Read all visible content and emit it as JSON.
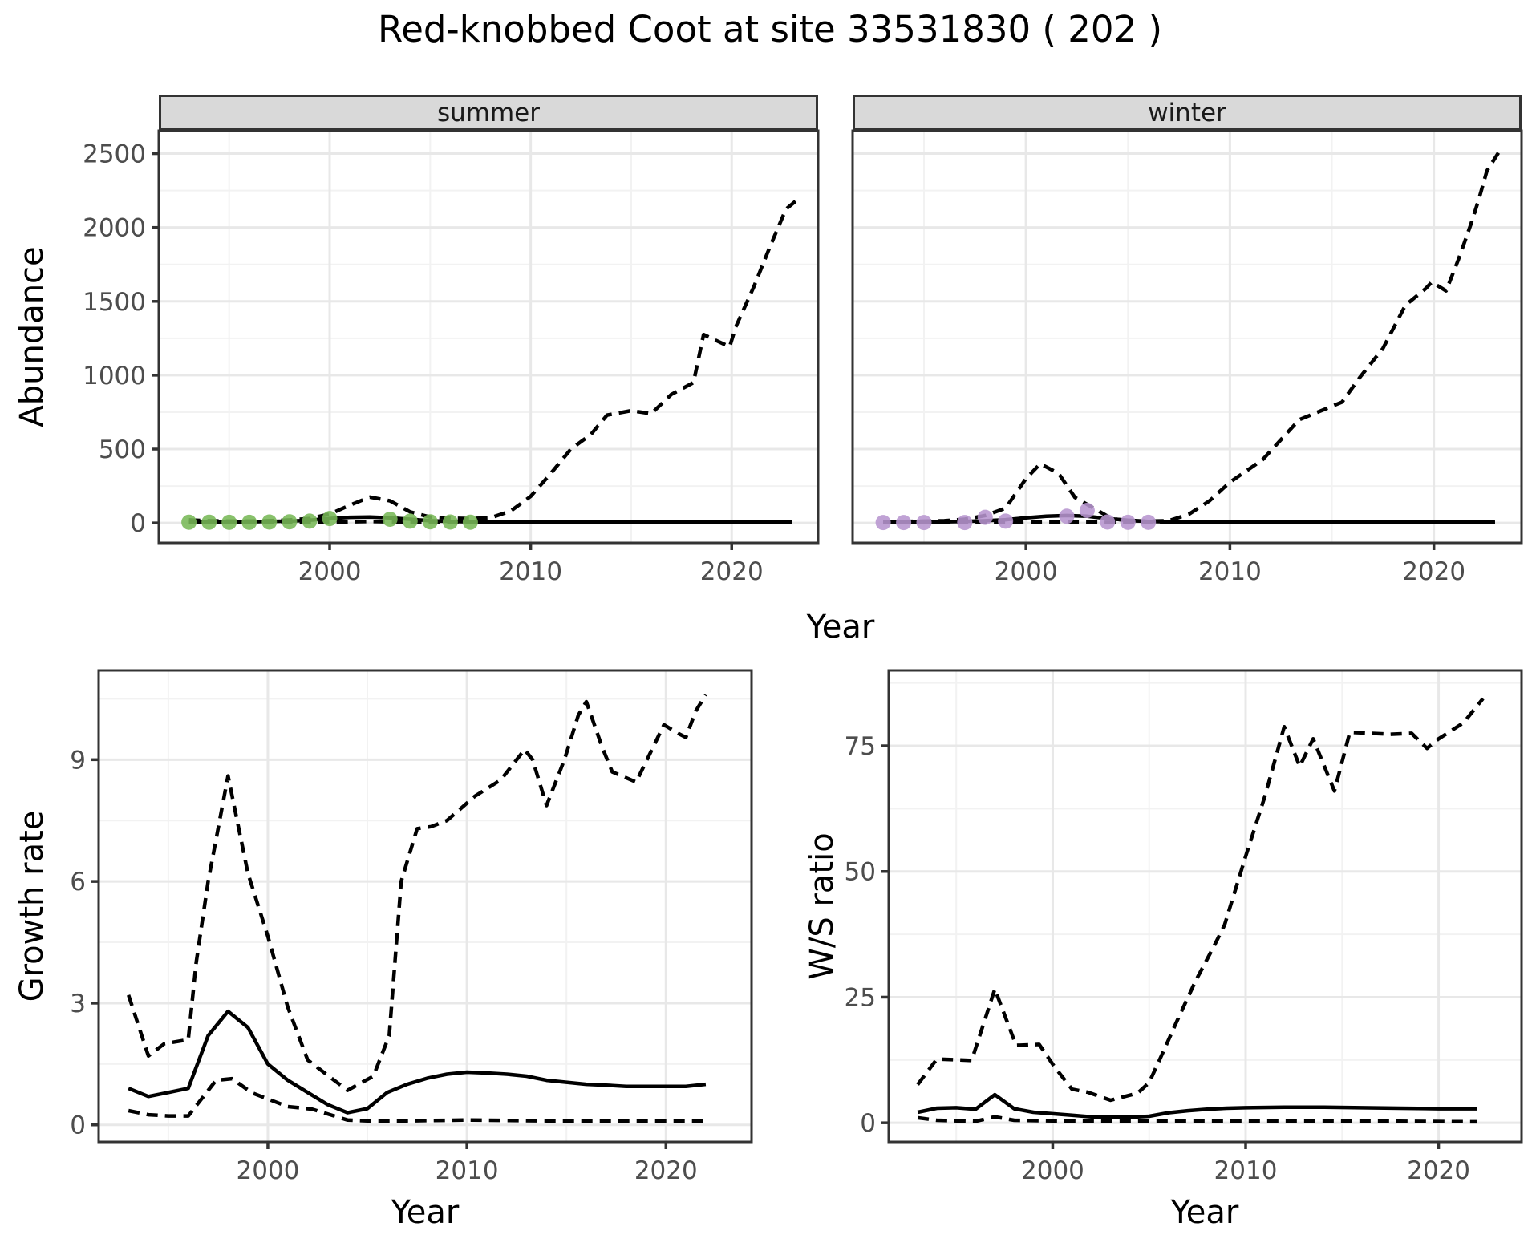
{
  "title": "Red-knobbed Coot at site 33531830 ( 202 )",
  "axis_titles": {
    "abundance_y": "Abundance",
    "top_x": "Year",
    "growth_y": "Growth rate",
    "growth_x": "Year",
    "ws_y": "W/S ratio",
    "ws_x": "Year"
  },
  "colors": {
    "summer_points": "#77B857",
    "winter_points": "#B795CF",
    "line": "#000000",
    "grid_major": "#E8E8E8",
    "grid_minor": "#F2F2F2",
    "panel_border": "#333333",
    "strip_bg": "#D9D9D9",
    "tick_label": "#4D4D4D"
  },
  "chart_data": [
    {
      "id": "abundance-summer",
      "type": "line",
      "facet_label": "summer",
      "xlabel": "Year",
      "ylabel": "Abundance",
      "xlim": [
        1991.5,
        2024.3
      ],
      "ylim": [
        -135,
        2655
      ],
      "x_ticks": [
        2000,
        2010,
        2020
      ],
      "x_minor": [
        1995,
        2005,
        2015
      ],
      "y_ticks": [
        0,
        500,
        1000,
        1500,
        2000,
        2500
      ],
      "y_minor": [
        250,
        750,
        1250,
        1750,
        2250
      ],
      "show_y_labels": true,
      "series": [
        {
          "name": "lower-ci",
          "style": "dashed",
          "x": [
            1993,
            1994,
            1995,
            1996,
            1997,
            1998,
            1999,
            2000,
            2001,
            2002,
            2003,
            2004,
            2005,
            2006,
            2007,
            2008,
            2009,
            2010,
            2011,
            2012,
            2013,
            2014,
            2015,
            2016,
            2017,
            2018,
            2019,
            2020,
            2021,
            2022,
            2023
          ],
          "y": [
            2,
            2,
            2,
            2,
            2,
            2,
            3,
            5,
            8,
            10,
            8,
            5,
            3,
            2,
            2,
            2,
            2,
            2,
            2,
            2,
            2,
            2,
            2,
            2,
            2,
            2,
            2,
            2,
            2,
            2,
            2
          ]
        },
        {
          "name": "upper-ci",
          "style": "dashed",
          "x": [
            1993,
            1994,
            1995,
            1996,
            1997,
            1998,
            1999,
            2000,
            2001,
            2002,
            2003,
            2004,
            2005,
            2006,
            2007,
            2008,
            2009,
            2010,
            2011,
            2012,
            2013,
            2013.8,
            2015,
            2016,
            2017,
            2018.1,
            2018.6,
            2019.9,
            2020.2,
            2021.1,
            2021.9,
            2022.7,
            2023.2
          ],
          "y": [
            20,
            15,
            12,
            12,
            15,
            20,
            30,
            60,
            120,
            175,
            150,
            75,
            40,
            32,
            30,
            35,
            80,
            180,
            335,
            500,
            600,
            730,
            760,
            740,
            870,
            950,
            1275,
            1192,
            1327,
            1598,
            1869,
            2124,
            2180
          ]
        },
        {
          "name": "mean",
          "style": "solid",
          "x": [
            1993,
            1994,
            1995,
            1996,
            1997,
            1998,
            1999,
            2000,
            2001,
            2002,
            2003,
            2004,
            2005,
            2006,
            2007,
            2008,
            2009,
            2010,
            2011,
            2012,
            2013,
            2014,
            2015,
            2016,
            2017,
            2018,
            2019,
            2020,
            2021,
            2022,
            2023
          ],
          "y": [
            8,
            8,
            8,
            8,
            10,
            12,
            18,
            30,
            38,
            40,
            35,
            25,
            15,
            10,
            8,
            6,
            5,
            5,
            5,
            5,
            5,
            5,
            5,
            5,
            5,
            5,
            5,
            5,
            5,
            5,
            5
          ]
        }
      ],
      "points": {
        "name": "observed-counts-summer",
        "color": "#77B857",
        "x": [
          1993,
          1994,
          1995,
          1996,
          1997,
          1998,
          1999,
          2000,
          2003,
          2004,
          2005,
          2006,
          2007
        ],
        "y": [
          5,
          5,
          4,
          4,
          6,
          8,
          12,
          30,
          25,
          12,
          8,
          6,
          5
        ]
      }
    },
    {
      "id": "abundance-winter",
      "type": "line",
      "facet_label": "winter",
      "xlabel": "Year",
      "ylabel": "Abundance",
      "xlim": [
        1991.5,
        2024.3
      ],
      "ylim": [
        -135,
        2655
      ],
      "x_ticks": [
        2000,
        2010,
        2020
      ],
      "x_minor": [
        1995,
        2005,
        2015
      ],
      "y_ticks": [
        0,
        500,
        1000,
        1500,
        2000,
        2500
      ],
      "y_minor": [
        250,
        750,
        1250,
        1750,
        2250
      ],
      "show_y_labels": false,
      "series": [
        {
          "name": "lower-ci",
          "style": "dashed",
          "x": [
            1993,
            1994,
            1995,
            1996,
            1997,
            1998,
            1999,
            2000,
            2001,
            2002,
            2003,
            2004,
            2005,
            2006,
            2007,
            2008,
            2009,
            2010,
            2011,
            2012,
            2013,
            2014,
            2015,
            2016,
            2017,
            2018,
            2019,
            2020,
            2021,
            2022,
            2023
          ],
          "y": [
            2,
            2,
            2,
            2,
            2,
            3,
            4,
            6,
            8,
            8,
            6,
            4,
            3,
            2,
            2,
            2,
            2,
            2,
            2,
            2,
            2,
            2,
            2,
            2,
            2,
            2,
            2,
            2,
            2,
            2,
            2
          ]
        },
        {
          "name": "upper-ci",
          "style": "dashed",
          "x": [
            1993,
            1994,
            1995,
            1996,
            1997,
            1998,
            1999,
            2000,
            2000.7,
            2001.6,
            2002.4,
            2003.2,
            2004.2,
            2005,
            2006,
            2007,
            2008,
            2009,
            2010,
            2011.6,
            2013.4,
            2015.5,
            2016.4,
            2017.5,
            2018.6,
            2019.6,
            2019.9,
            2020.6,
            2021.2,
            2021.8,
            2022.2,
            2022.6,
            2023.3
          ],
          "y": [
            10,
            10,
            12,
            15,
            25,
            50,
            100,
            300,
            400,
            335,
            173,
            110,
            30,
            15,
            12,
            15,
            60,
            150,
            276,
            428,
            699,
            818,
            991,
            1181,
            1473,
            1587,
            1630,
            1571,
            1782,
            2015,
            2188,
            2383,
            2535
          ]
        },
        {
          "name": "mean",
          "style": "solid",
          "x": [
            1993,
            1994,
            1995,
            1996,
            1997,
            1998,
            1999,
            2000,
            2001,
            2002,
            2003,
            2004,
            2005,
            2006,
            2007,
            2008,
            2009,
            2010,
            2011,
            2012,
            2013,
            2014,
            2015,
            2016,
            2017,
            2018,
            2019,
            2020,
            2021,
            2022,
            2023
          ],
          "y": [
            5,
            5,
            6,
            7,
            10,
            15,
            22,
            35,
            45,
            50,
            45,
            30,
            18,
            10,
            7,
            6,
            6,
            6,
            6,
            6,
            6,
            6,
            6,
            6,
            6,
            6,
            6,
            6,
            6,
            7,
            8
          ]
        }
      ],
      "points": {
        "name": "observed-counts-winter",
        "color": "#B795CF",
        "x": [
          1993,
          1994,
          1995,
          1997,
          1998,
          1999,
          2002,
          2003,
          2004,
          2005,
          2006
        ],
        "y": [
          3,
          3,
          3,
          3,
          38,
          12,
          45,
          85,
          6,
          4,
          4
        ]
      }
    },
    {
      "id": "growth-rate",
      "type": "line",
      "facet_label": "",
      "xlabel": "Year",
      "ylabel": "Growth rate",
      "xlim": [
        1991.5,
        2024.3
      ],
      "ylim": [
        -0.42,
        11.2
      ],
      "x_ticks": [
        2000,
        2010,
        2020
      ],
      "x_minor": [
        1995,
        2005,
        2015
      ],
      "y_ticks": [
        0,
        3,
        6,
        9
      ],
      "y_minor": [
        1.5,
        4.5,
        7.5,
        10.5
      ],
      "show_y_labels": true,
      "series": [
        {
          "name": "lower-ci",
          "style": "dashed",
          "x": [
            1993,
            1994,
            1995,
            1996,
            1997.4,
            1998.2,
            1999.2,
            2001,
            2002.2,
            2004,
            2005,
            2007,
            2010,
            2014,
            2018,
            2022
          ],
          "y": [
            0.35,
            0.25,
            0.22,
            0.22,
            1.1,
            1.14,
            0.79,
            0.45,
            0.39,
            0.12,
            0.1,
            0.1,
            0.12,
            0.1,
            0.1,
            0.1
          ]
        },
        {
          "name": "upper-ci",
          "style": "dashed",
          "x": [
            1993,
            1994,
            1994.8,
            1996,
            1996.4,
            1997,
            1998,
            1999,
            2000,
            2001,
            2002,
            2002.8,
            2004,
            2005.3,
            2006.1,
            2006.7,
            2007.5,
            2008.2,
            2009,
            2010.4,
            2011.7,
            2012.9,
            2013.3,
            2014,
            2014.9,
            2015.6,
            2016,
            2016.8,
            2017.3,
            2018.5,
            2019.9,
            2020.6,
            2021,
            2021.5,
            2022
          ],
          "y": [
            3.2,
            1.7,
            2.0,
            2.1,
            4.0,
            6.0,
            8.6,
            6.2,
            4.65,
            2.9,
            1.6,
            1.3,
            0.85,
            1.2,
            2.2,
            6.0,
            7.3,
            7.35,
            7.5,
            8.1,
            8.5,
            9.25,
            9.0,
            7.87,
            9.0,
            10.1,
            10.43,
            9.3,
            8.7,
            8.45,
            9.86,
            9.65,
            9.55,
            10.2,
            10.6
          ]
        },
        {
          "name": "mean",
          "style": "solid",
          "x": [
            1993,
            1994,
            1995,
            1996,
            1997,
            1998,
            1999,
            2000,
            2001,
            2002,
            2003,
            2004,
            2005,
            2006,
            2007,
            2008,
            2009,
            2010,
            2011,
            2012,
            2013,
            2014,
            2015,
            2016,
            2017,
            2018,
            2019,
            2020,
            2021,
            2022
          ],
          "y": [
            0.9,
            0.7,
            0.8,
            0.9,
            2.2,
            2.8,
            2.4,
            1.5,
            1.1,
            0.8,
            0.5,
            0.3,
            0.4,
            0.8,
            1.0,
            1.15,
            1.25,
            1.3,
            1.28,
            1.25,
            1.2,
            1.1,
            1.05,
            1.0,
            0.98,
            0.95,
            0.95,
            0.95,
            0.95,
            1.0
          ]
        }
      ]
    },
    {
      "id": "ws-ratio",
      "type": "line",
      "facet_label": "",
      "xlabel": "Year",
      "ylabel": "W/S ratio",
      "xlim": [
        1991.5,
        2024.3
      ],
      "ylim": [
        -3.8,
        90
      ],
      "x_ticks": [
        2000,
        2010,
        2020
      ],
      "x_minor": [
        1995,
        2005,
        2015
      ],
      "y_ticks": [
        0,
        25,
        50,
        75
      ],
      "y_minor": [
        12.5,
        37.5,
        62.5,
        87.5
      ],
      "show_y_labels": true,
      "series": [
        {
          "name": "lower-ci",
          "style": "dashed",
          "x": [
            1993,
            1994,
            1995,
            1996,
            1997,
            1998,
            2000,
            2003,
            2006,
            2010,
            2014,
            2018,
            2022
          ],
          "y": [
            1.0,
            0.5,
            0.4,
            0.3,
            1.2,
            0.5,
            0.4,
            0.3,
            0.35,
            0.4,
            0.35,
            0.3,
            0.2
          ]
        },
        {
          "name": "upper-ci",
          "style": "dashed",
          "x": [
            1993,
            1994,
            1995.8,
            1997,
            1998.1,
            1999.3,
            2000.1,
            2001,
            2001.8,
            2003,
            2004.4,
            2005,
            2005.7,
            2006.4,
            2007.4,
            2008.3,
            2008.9,
            2010,
            2011,
            2012,
            2012.8,
            2013.5,
            2014.6,
            2015.4,
            2016.5,
            2017.5,
            2018.6,
            2019.4,
            2020,
            2021.3,
            2022.3
          ],
          "y": [
            7.6,
            12.7,
            12.4,
            26.6,
            15.4,
            15.6,
            11.1,
            6.7,
            6.1,
            4.5,
            5.9,
            8.0,
            13.9,
            19.9,
            28.2,
            34.7,
            39.3,
            53,
            65,
            78.8,
            70.9,
            76.4,
            66,
            77.7,
            77.5,
            77.3,
            77.5,
            74.5,
            76.4,
            79.6,
            84.4
          ]
        },
        {
          "name": "mean",
          "style": "solid",
          "x": [
            1993,
            1994,
            1995,
            1996,
            1997,
            1998,
            1999,
            2000,
            2001,
            2002,
            2003,
            2004,
            2005,
            2006,
            2007,
            2008,
            2009,
            2010,
            2012,
            2014,
            2016,
            2018,
            2020,
            2022
          ],
          "y": [
            2.1,
            2.9,
            3.0,
            2.7,
            5.6,
            2.8,
            2.1,
            1.8,
            1.5,
            1.2,
            1.1,
            1.1,
            1.3,
            2.0,
            2.4,
            2.7,
            2.9,
            3.0,
            3.1,
            3.1,
            3.0,
            2.9,
            2.8,
            2.8
          ]
        }
      ]
    }
  ]
}
